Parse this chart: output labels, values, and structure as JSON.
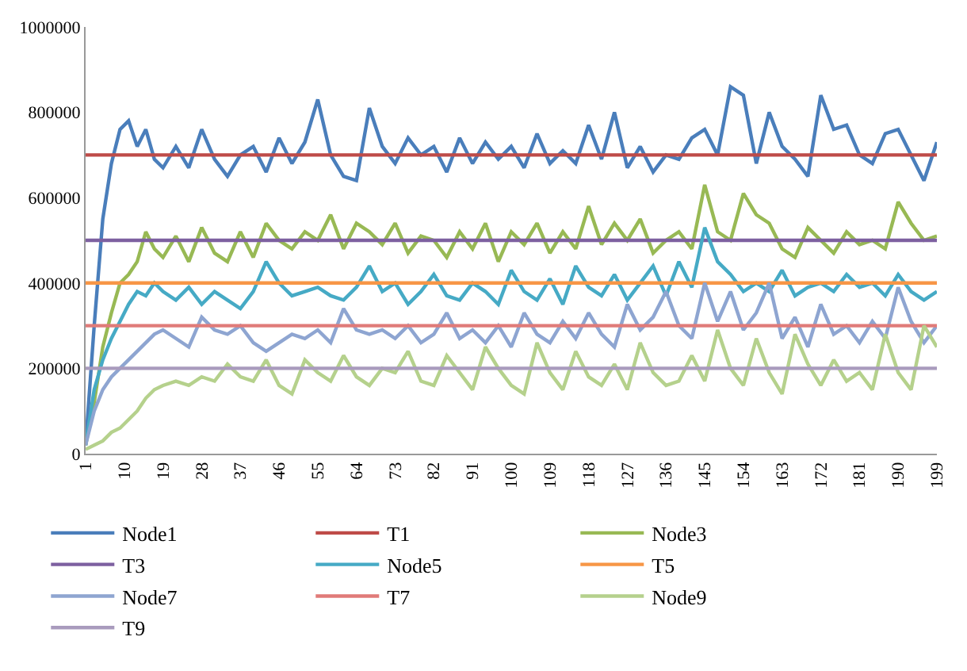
{
  "chart_data": {
    "type": "line",
    "x": [
      1,
      3,
      5,
      7,
      9,
      11,
      13,
      15,
      17,
      19,
      22,
      25,
      28,
      31,
      34,
      37,
      40,
      43,
      46,
      49,
      52,
      55,
      58,
      61,
      64,
      67,
      70,
      73,
      76,
      79,
      82,
      85,
      88,
      91,
      94,
      97,
      100,
      103,
      106,
      109,
      112,
      115,
      118,
      121,
      124,
      127,
      130,
      133,
      136,
      139,
      142,
      145,
      148,
      151,
      154,
      157,
      160,
      163,
      166,
      169,
      172,
      175,
      178,
      181,
      184,
      187,
      190,
      193,
      196,
      199
    ],
    "series": [
      {
        "name": "Node1",
        "color": "#4a7ebb",
        "values": [
          20000,
          300000,
          550000,
          680000,
          760000,
          780000,
          720000,
          760000,
          690000,
          670000,
          720000,
          670000,
          760000,
          690000,
          650000,
          700000,
          720000,
          660000,
          740000,
          680000,
          730000,
          830000,
          700000,
          650000,
          640000,
          810000,
          720000,
          680000,
          740000,
          700000,
          720000,
          660000,
          740000,
          680000,
          730000,
          690000,
          720000,
          670000,
          750000,
          680000,
          710000,
          680000,
          770000,
          690000,
          800000,
          670000,
          720000,
          660000,
          700000,
          690000,
          740000,
          760000,
          700000,
          860000,
          840000,
          680000,
          800000,
          720000,
          690000,
          650000,
          840000,
          760000,
          770000,
          700000,
          680000,
          750000,
          760000,
          700000,
          640000,
          730000
        ]
      },
      {
        "name": "T1",
        "color": "#be4b48",
        "values": [
          700000,
          700000,
          700000,
          700000,
          700000,
          700000,
          700000,
          700000,
          700000,
          700000,
          700000,
          700000,
          700000,
          700000,
          700000,
          700000,
          700000,
          700000,
          700000,
          700000,
          700000,
          700000,
          700000,
          700000,
          700000,
          700000,
          700000,
          700000,
          700000,
          700000,
          700000,
          700000,
          700000,
          700000,
          700000,
          700000,
          700000,
          700000,
          700000,
          700000,
          700000,
          700000,
          700000,
          700000,
          700000,
          700000,
          700000,
          700000,
          700000,
          700000,
          700000,
          700000,
          700000,
          700000,
          700000,
          700000,
          700000,
          700000,
          700000,
          700000,
          700000,
          700000,
          700000,
          700000,
          700000,
          700000,
          700000,
          700000,
          700000,
          700000
        ]
      },
      {
        "name": "Node3",
        "color": "#98b954",
        "values": [
          20000,
          120000,
          250000,
          330000,
          400000,
          420000,
          450000,
          520000,
          480000,
          460000,
          510000,
          450000,
          530000,
          470000,
          450000,
          520000,
          460000,
          540000,
          500000,
          480000,
          520000,
          500000,
          560000,
          480000,
          540000,
          520000,
          490000,
          540000,
          470000,
          510000,
          500000,
          460000,
          520000,
          480000,
          540000,
          450000,
          520000,
          490000,
          540000,
          470000,
          520000,
          480000,
          580000,
          490000,
          540000,
          500000,
          550000,
          470000,
          500000,
          520000,
          480000,
          630000,
          520000,
          500000,
          610000,
          560000,
          540000,
          480000,
          460000,
          530000,
          500000,
          470000,
          520000,
          490000,
          500000,
          480000,
          590000,
          540000,
          500000,
          510000
        ]
      },
      {
        "name": "T3",
        "color": "#7d60a0",
        "values": [
          500000,
          500000,
          500000,
          500000,
          500000,
          500000,
          500000,
          500000,
          500000,
          500000,
          500000,
          500000,
          500000,
          500000,
          500000,
          500000,
          500000,
          500000,
          500000,
          500000,
          500000,
          500000,
          500000,
          500000,
          500000,
          500000,
          500000,
          500000,
          500000,
          500000,
          500000,
          500000,
          500000,
          500000,
          500000,
          500000,
          500000,
          500000,
          500000,
          500000,
          500000,
          500000,
          500000,
          500000,
          500000,
          500000,
          500000,
          500000,
          500000,
          500000,
          500000,
          500000,
          500000,
          500000,
          500000,
          500000,
          500000,
          500000,
          500000,
          500000,
          500000,
          500000,
          500000,
          500000,
          500000,
          500000,
          500000,
          500000,
          500000,
          500000
        ]
      },
      {
        "name": "Node5",
        "color": "#46aac5",
        "values": [
          20000,
          150000,
          220000,
          270000,
          310000,
          350000,
          380000,
          370000,
          400000,
          380000,
          360000,
          390000,
          350000,
          380000,
          360000,
          340000,
          380000,
          450000,
          400000,
          370000,
          380000,
          390000,
          370000,
          360000,
          390000,
          440000,
          380000,
          400000,
          350000,
          380000,
          420000,
          370000,
          360000,
          400000,
          380000,
          350000,
          430000,
          380000,
          360000,
          410000,
          350000,
          440000,
          390000,
          370000,
          420000,
          360000,
          400000,
          440000,
          370000,
          450000,
          390000,
          530000,
          450000,
          420000,
          380000,
          400000,
          380000,
          430000,
          370000,
          390000,
          400000,
          380000,
          420000,
          390000,
          400000,
          370000,
          420000,
          380000,
          360000,
          380000
        ]
      },
      {
        "name": "T5",
        "color": "#f79646",
        "values": [
          400000,
          400000,
          400000,
          400000,
          400000,
          400000,
          400000,
          400000,
          400000,
          400000,
          400000,
          400000,
          400000,
          400000,
          400000,
          400000,
          400000,
          400000,
          400000,
          400000,
          400000,
          400000,
          400000,
          400000,
          400000,
          400000,
          400000,
          400000,
          400000,
          400000,
          400000,
          400000,
          400000,
          400000,
          400000,
          400000,
          400000,
          400000,
          400000,
          400000,
          400000,
          400000,
          400000,
          400000,
          400000,
          400000,
          400000,
          400000,
          400000,
          400000,
          400000,
          400000,
          400000,
          400000,
          400000,
          400000,
          400000,
          400000,
          400000,
          400000,
          400000,
          400000,
          400000,
          400000,
          400000,
          400000,
          400000,
          400000,
          400000,
          400000
        ]
      },
      {
        "name": "Node7",
        "color": "#8ea5d1",
        "values": [
          20000,
          100000,
          150000,
          180000,
          200000,
          220000,
          240000,
          260000,
          280000,
          290000,
          270000,
          250000,
          320000,
          290000,
          280000,
          300000,
          260000,
          240000,
          260000,
          280000,
          270000,
          290000,
          260000,
          340000,
          290000,
          280000,
          290000,
          270000,
          300000,
          260000,
          280000,
          330000,
          270000,
          290000,
          260000,
          300000,
          250000,
          330000,
          280000,
          260000,
          310000,
          270000,
          330000,
          280000,
          250000,
          350000,
          290000,
          320000,
          380000,
          300000,
          270000,
          400000,
          310000,
          380000,
          290000,
          330000,
          400000,
          270000,
          320000,
          250000,
          350000,
          280000,
          300000,
          260000,
          310000,
          270000,
          390000,
          310000,
          260000,
          300000
        ]
      },
      {
        "name": "T7",
        "color": "#e07b79",
        "values": [
          300000,
          300000,
          300000,
          300000,
          300000,
          300000,
          300000,
          300000,
          300000,
          300000,
          300000,
          300000,
          300000,
          300000,
          300000,
          300000,
          300000,
          300000,
          300000,
          300000,
          300000,
          300000,
          300000,
          300000,
          300000,
          300000,
          300000,
          300000,
          300000,
          300000,
          300000,
          300000,
          300000,
          300000,
          300000,
          300000,
          300000,
          300000,
          300000,
          300000,
          300000,
          300000,
          300000,
          300000,
          300000,
          300000,
          300000,
          300000,
          300000,
          300000,
          300000,
          300000,
          300000,
          300000,
          300000,
          300000,
          300000,
          300000,
          300000,
          300000,
          300000,
          300000,
          300000,
          300000,
          300000,
          300000,
          300000,
          300000,
          300000,
          300000
        ]
      },
      {
        "name": "Node9",
        "color": "#b5d18c",
        "values": [
          10000,
          20000,
          30000,
          50000,
          60000,
          80000,
          100000,
          130000,
          150000,
          160000,
          170000,
          160000,
          180000,
          170000,
          210000,
          180000,
          170000,
          220000,
          160000,
          140000,
          220000,
          190000,
          170000,
          230000,
          180000,
          160000,
          200000,
          190000,
          240000,
          170000,
          160000,
          230000,
          190000,
          150000,
          250000,
          200000,
          160000,
          140000,
          260000,
          190000,
          150000,
          240000,
          180000,
          160000,
          210000,
          150000,
          260000,
          190000,
          160000,
          170000,
          230000,
          170000,
          290000,
          200000,
          160000,
          270000,
          190000,
          140000,
          280000,
          210000,
          160000,
          220000,
          170000,
          190000,
          150000,
          280000,
          190000,
          150000,
          300000,
          250000
        ]
      },
      {
        "name": "T9",
        "color": "#a99bbd",
        "values": [
          200000,
          200000,
          200000,
          200000,
          200000,
          200000,
          200000,
          200000,
          200000,
          200000,
          200000,
          200000,
          200000,
          200000,
          200000,
          200000,
          200000,
          200000,
          200000,
          200000,
          200000,
          200000,
          200000,
          200000,
          200000,
          200000,
          200000,
          200000,
          200000,
          200000,
          200000,
          200000,
          200000,
          200000,
          200000,
          200000,
          200000,
          200000,
          200000,
          200000,
          200000,
          200000,
          200000,
          200000,
          200000,
          200000,
          200000,
          200000,
          200000,
          200000,
          200000,
          200000,
          200000,
          200000,
          200000,
          200000,
          200000,
          200000,
          200000,
          200000,
          200000,
          200000,
          200000,
          200000,
          200000,
          200000,
          200000,
          200000,
          200000,
          200000
        ]
      }
    ],
    "xlim": [
      1,
      199
    ],
    "xticks": [
      1,
      10,
      19,
      28,
      37,
      46,
      55,
      64,
      73,
      82,
      91,
      100,
      109,
      118,
      127,
      136,
      145,
      154,
      163,
      172,
      181,
      190,
      199
    ],
    "ylim": [
      0,
      1000000
    ],
    "yticks": [
      0,
      200000,
      400000,
      600000,
      800000,
      1000000
    ],
    "legend": "bottom",
    "marker": "none",
    "line_style": "solid"
  }
}
